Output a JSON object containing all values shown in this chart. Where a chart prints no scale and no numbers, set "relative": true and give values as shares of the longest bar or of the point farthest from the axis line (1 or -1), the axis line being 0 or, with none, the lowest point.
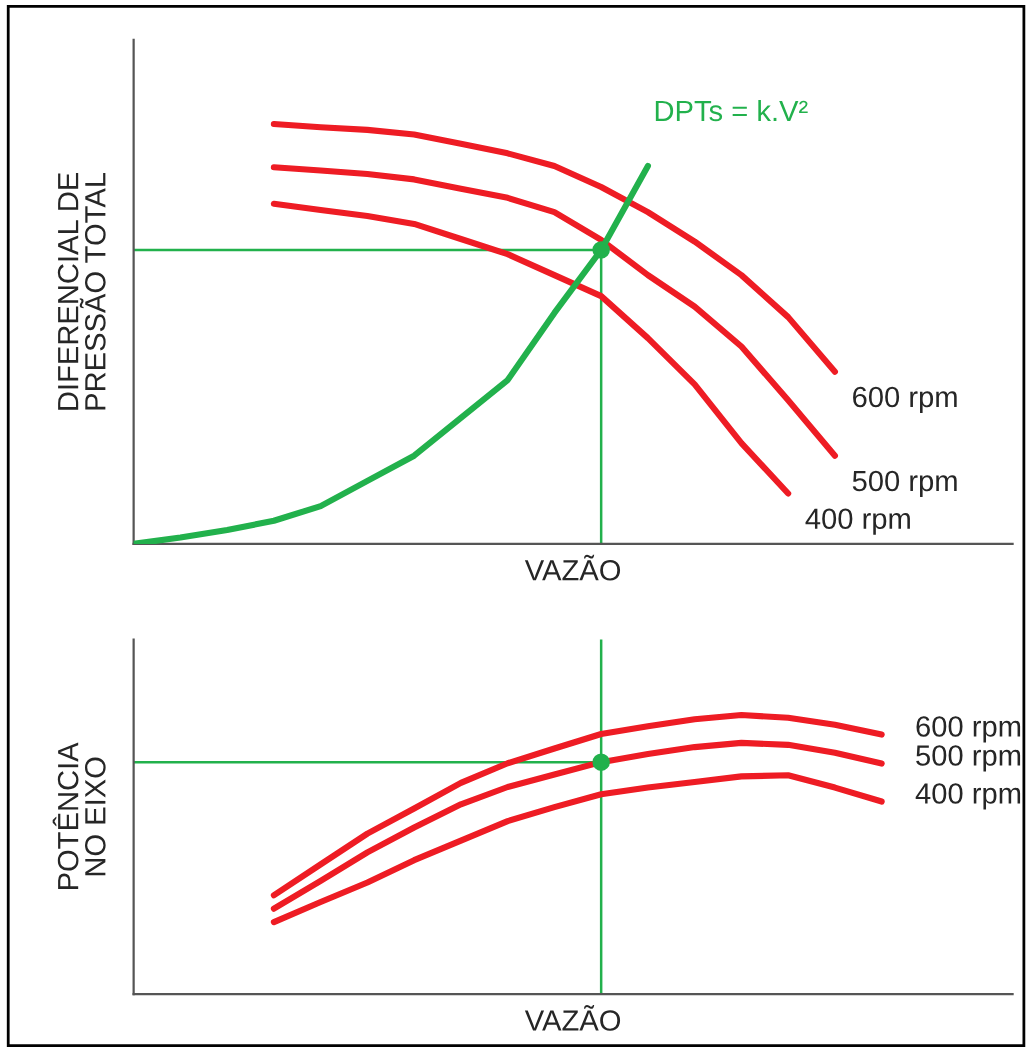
{
  "chart_data": [
    {
      "type": "line",
      "relative": true,
      "xlabel": "VAZÃO",
      "ylabel": "DIFERENCIAL DE\nPRESSÃO TOTAL",
      "categories": [
        null,
        null,
        null,
        null,
        null,
        null,
        null,
        null,
        null,
        null,
        null,
        null,
        null,
        null,
        null,
        null,
        null,
        null,
        null
      ],
      "series": [
        {
          "name": "600 rpm",
          "color": "#ee1c24",
          "values": [
            null,
            null,
            null,
            1.0,
            0.992,
            0.986,
            0.975,
            0.953,
            0.93,
            0.9,
            0.85,
            0.79,
            0.72,
            0.64,
            0.54,
            0.41,
            null,
            null,
            null
          ]
        },
        {
          "name": "500 rpm",
          "color": "#ee1c24",
          "values": [
            null,
            null,
            null,
            0.897,
            0.889,
            0.881,
            0.868,
            0.846,
            0.824,
            0.79,
            0.724,
            0.64,
            0.565,
            0.47,
            0.342,
            0.21,
            null,
            null,
            null
          ]
        },
        {
          "name": "400 rpm",
          "color": "#ee1c24",
          "values": [
            null,
            null,
            null,
            0.81,
            0.795,
            0.781,
            0.762,
            0.726,
            0.69,
            0.64,
            0.59,
            0.49,
            0.38,
            0.24,
            0.12,
            null,
            null,
            null,
            null
          ]
        },
        {
          "color": "#22b14c",
          "values": [
            0,
            0.015,
            0.033,
            0.055,
            0.09,
            0.15,
            0.21,
            0.3,
            0.39,
            0.55,
            0.7,
            0.9,
            null,
            null,
            null,
            null,
            null,
            null,
            null
          ]
        }
      ],
      "ref_lines": [
        {
          "axis": "y",
          "value": 0.7,
          "color": "#22b14c"
        }
      ],
      "annotations": [
        "DPTs = k.V²"
      ]
    },
    {
      "type": "line",
      "relative": true,
      "xlabel": "VAZÃO",
      "ylabel": "POTÊNCIA\nNO EIXO",
      "categories": [
        null,
        null,
        null,
        null,
        null,
        null,
        null,
        null,
        null,
        null,
        null,
        null,
        null,
        null,
        null,
        null,
        null,
        null,
        null
      ],
      "series": [
        {
          "name": "600 rpm",
          "color": "#ee1c24",
          "values": [
            null,
            null,
            null,
            0.354,
            0.465,
            0.575,
            0.665,
            0.757,
            0.827,
            0.88,
            0.932,
            0.96,
            0.985,
            1.0,
            0.99,
            0.965,
            0.93,
            null,
            null
          ]
        },
        {
          "name": "500 rpm",
          "color": "#ee1c24",
          "values": [
            null,
            null,
            null,
            0.306,
            0.406,
            0.508,
            0.597,
            0.68,
            0.742,
            0.787,
            0.831,
            0.86,
            0.885,
            0.9,
            0.893,
            0.865,
            0.826,
            null,
            null
          ]
        },
        {
          "name": "400 rpm",
          "color": "#ee1c24",
          "values": [
            null,
            null,
            null,
            0.258,
            0.33,
            0.4,
            0.48,
            0.55,
            0.62,
            0.67,
            0.716,
            0.74,
            0.76,
            0.78,
            0.784,
            0.74,
            0.69,
            null,
            null
          ]
        }
      ],
      "ref_lines": [
        {
          "axis": "y",
          "value": 0.831,
          "color": "#22b14c"
        }
      ]
    }
  ]
}
